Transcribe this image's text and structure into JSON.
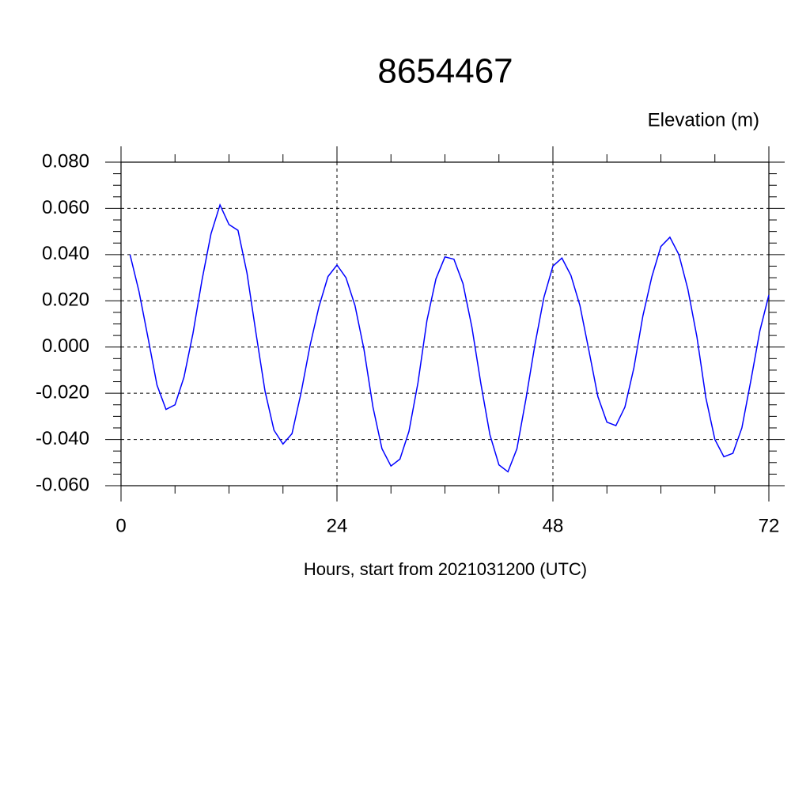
{
  "chart_data": {
    "type": "line",
    "title": "8654467",
    "y_label": "Elevation (m)",
    "x_label": "Hours, start from 2021031200 (UTC)",
    "xlim": [
      0,
      72
    ],
    "xticks": [
      0,
      24,
      48,
      72
    ],
    "ylim": [
      -0.06,
      0.08
    ],
    "yticks": [
      {
        "value": -0.06,
        "label": "-0.060"
      },
      {
        "value": -0.04,
        "label": "-0.040"
      },
      {
        "value": -0.02,
        "label": "-0.020"
      },
      {
        "value": 0,
        "label": "0.000"
      },
      {
        "value": 0.02,
        "label": "0.020"
      },
      {
        "value": 0.04,
        "label": "0.040"
      },
      {
        "value": 0.06,
        "label": "0.060"
      },
      {
        "value": 0.08,
        "label": "0.080"
      }
    ],
    "grid": true,
    "x": [
      1,
      2,
      3,
      4,
      5,
      6,
      7,
      8,
      9,
      10,
      11,
      12,
      13,
      14,
      15,
      16,
      17,
      18,
      19,
      20,
      21,
      22,
      23,
      24,
      25,
      26,
      27,
      28,
      29,
      30,
      31,
      32,
      33,
      34,
      35,
      36,
      37,
      38,
      39,
      40,
      41,
      42,
      43,
      44,
      45,
      46,
      47,
      48,
      49,
      50,
      51,
      52,
      53,
      54,
      55,
      56,
      57,
      58,
      59,
      60,
      61,
      62,
      63,
      64,
      65,
      66,
      67,
      68,
      69,
      70,
      71,
      72
    ],
    "series": [
      {
        "color": "#0000ff",
        "values": [
          0.04,
          0.024,
          0.004,
          -0.0165,
          -0.027,
          -0.025,
          -0.013,
          0.006,
          0.029,
          0.049,
          0.0615,
          0.053,
          0.0505,
          0.032,
          0.006,
          -0.019,
          -0.036,
          -0.042,
          -0.0375,
          -0.02,
          0.0005,
          0.0175,
          0.0305,
          0.0355,
          0.03,
          0.018,
          -0.001,
          -0.026,
          -0.044,
          -0.0515,
          -0.0485,
          -0.0365,
          -0.0155,
          0.0115,
          0.0295,
          0.039,
          0.038,
          0.0275,
          0.0085,
          -0.016,
          -0.038,
          -0.051,
          -0.054,
          -0.044,
          -0.0225,
          0.001,
          0.0215,
          0.035,
          0.0385,
          0.031,
          0.018,
          -0.0015,
          -0.0215,
          -0.0325,
          -0.034,
          -0.026,
          -0.009,
          0.0135,
          0.0305,
          0.0435,
          0.0475,
          0.04,
          0.025,
          0.0045,
          -0.022,
          -0.04,
          -0.0475,
          -0.046,
          -0.035,
          -0.0145,
          0.007,
          0.0225
        ]
      }
    ]
  }
}
